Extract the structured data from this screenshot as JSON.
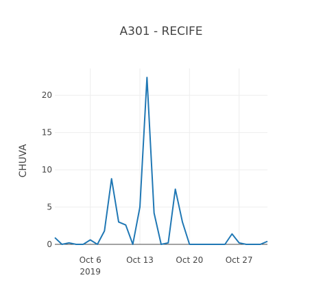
{
  "chart_data": {
    "type": "line",
    "title": "A301 - RECIFE",
    "xlabel": "",
    "ylabel": "CHUVA",
    "x": [
      "2019-10-01",
      "2019-10-02",
      "2019-10-03",
      "2019-10-04",
      "2019-10-05",
      "2019-10-06",
      "2019-10-07",
      "2019-10-08",
      "2019-10-09",
      "2019-10-10",
      "2019-10-11",
      "2019-10-12",
      "2019-10-13",
      "2019-10-14",
      "2019-10-15",
      "2019-10-16",
      "2019-10-17",
      "2019-10-18",
      "2019-10-19",
      "2019-10-20",
      "2019-10-21",
      "2019-10-22",
      "2019-10-23",
      "2019-10-24",
      "2019-10-25",
      "2019-10-26",
      "2019-10-27",
      "2019-10-28",
      "2019-10-29",
      "2019-10-30",
      "2019-10-31"
    ],
    "series": [
      {
        "values": [
          0.9,
          0.0,
          0.2,
          0.0,
          0.0,
          0.6,
          0.0,
          1.8,
          8.8,
          3.0,
          2.6,
          0.0,
          5.0,
          22.4,
          4.2,
          0.0,
          0.2,
          7.4,
          3.0,
          0.0,
          0.0,
          0.0,
          0.0,
          0.0,
          0.0,
          1.4,
          0.2,
          0.0,
          0.0,
          0.0,
          0.4
        ],
        "color": "#1f77b4"
      }
    ],
    "xlim": [
      "2019-10-01",
      "2019-10-31"
    ],
    "ylim": [
      0,
      23.6
    ],
    "x_ticks": [
      {
        "date": "2019-10-06",
        "label": "Oct 6",
        "sublabel": "2019"
      },
      {
        "date": "2019-10-13",
        "label": "Oct 13",
        "sublabel": ""
      },
      {
        "date": "2019-10-20",
        "label": "Oct 20",
        "sublabel": ""
      },
      {
        "date": "2019-10-27",
        "label": "Oct 27",
        "sublabel": ""
      }
    ],
    "y_ticks": [
      0,
      5,
      10,
      15,
      20
    ],
    "grid": true,
    "legend": "none"
  }
}
